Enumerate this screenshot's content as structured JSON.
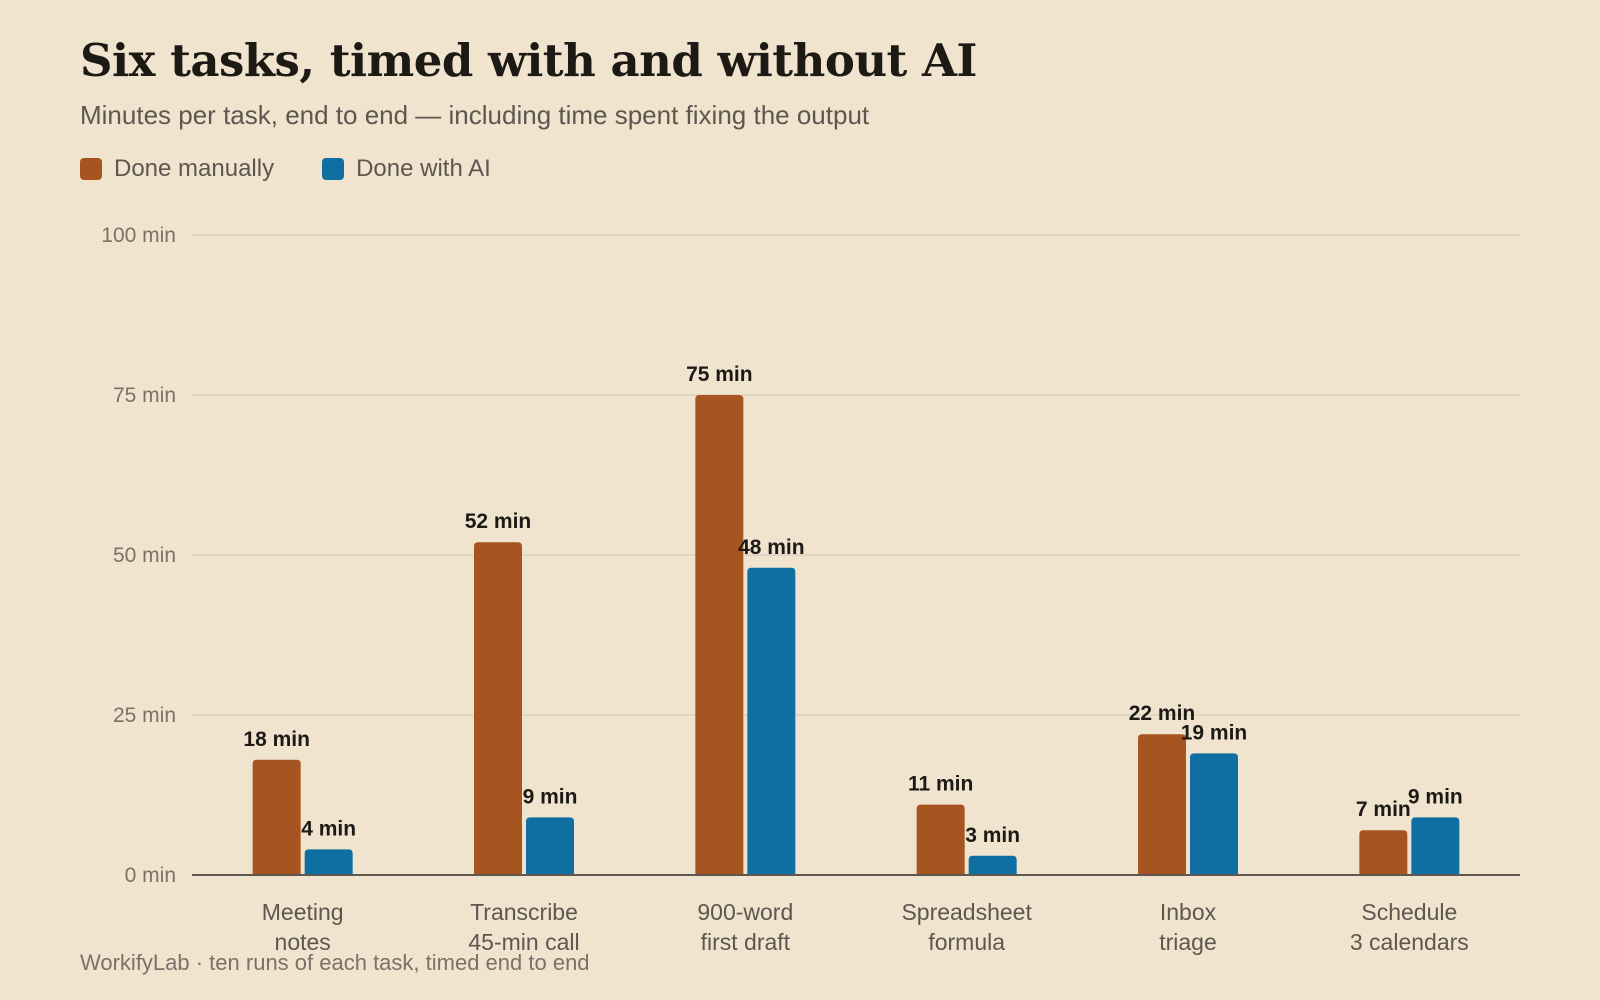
{
  "header": {
    "title": "Six tasks, timed with and without AI",
    "subtitle": "Minutes per task, end to end — including time spent fixing the output"
  },
  "footer": {
    "source": "WorkifyLab · ten runs of each task, timed end to end"
  },
  "colors": {
    "manual": "#a65520",
    "ai": "#0f6fa3",
    "background": "#f0e4cf",
    "grid": "#ddd2bd",
    "axis": "#5e574f"
  },
  "chart_data": {
    "type": "bar",
    "categories": [
      [
        "Meeting",
        "notes"
      ],
      [
        "Transcribe",
        "45-min call"
      ],
      [
        "900-word",
        "first draft"
      ],
      [
        "Spreadsheet",
        "formula"
      ],
      [
        "Inbox",
        "triage"
      ],
      [
        "Schedule",
        "3 calendars"
      ]
    ],
    "series": [
      {
        "name": "Done manually",
        "color": "#a65520",
        "values": [
          18,
          52,
          75,
          11,
          22,
          7
        ]
      },
      {
        "name": "Done with AI",
        "color": "#0f6fa3",
        "values": [
          4,
          9,
          48,
          3,
          19,
          9
        ]
      }
    ],
    "value_suffix": " min",
    "yticks": [
      0,
      25,
      50,
      75,
      100
    ],
    "ytick_labels": [
      "0 min",
      "25 min",
      "50 min",
      "75 min",
      "100 min"
    ],
    "ylim": [
      0,
      100
    ],
    "grid": true,
    "legend": "top-left"
  }
}
